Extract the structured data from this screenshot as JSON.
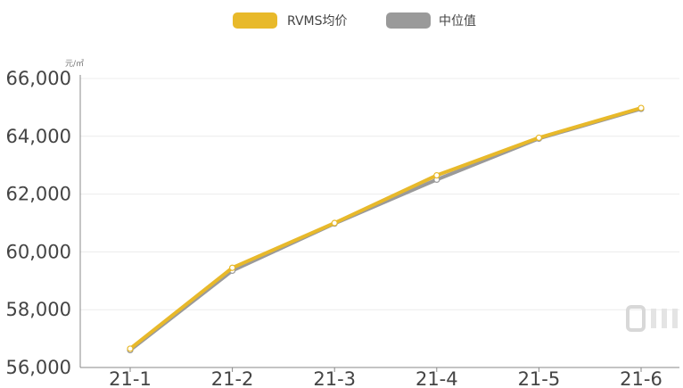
{
  "chart_data": {
    "type": "line",
    "categories": [
      "21-1",
      "21-2",
      "21-3",
      "21-4",
      "21-5",
      "21-6"
    ],
    "series": [
      {
        "name": "RVMS均价",
        "color": "#E8B92A",
        "values": [
          56650,
          59450,
          61000,
          62650,
          63950,
          64980
        ]
      },
      {
        "name": "中位值",
        "color": "#9A9A9A",
        "values": [
          56600,
          59350,
          60980,
          62500,
          63920,
          64950
        ]
      }
    ],
    "ylim": [
      56000,
      66000
    ],
    "yticks": [
      "56,000",
      "58,000",
      "60,000",
      "62,000",
      "64,000",
      "66,000"
    ],
    "y_unit": "元/㎡",
    "legend_position": "top-center",
    "grid": true
  }
}
